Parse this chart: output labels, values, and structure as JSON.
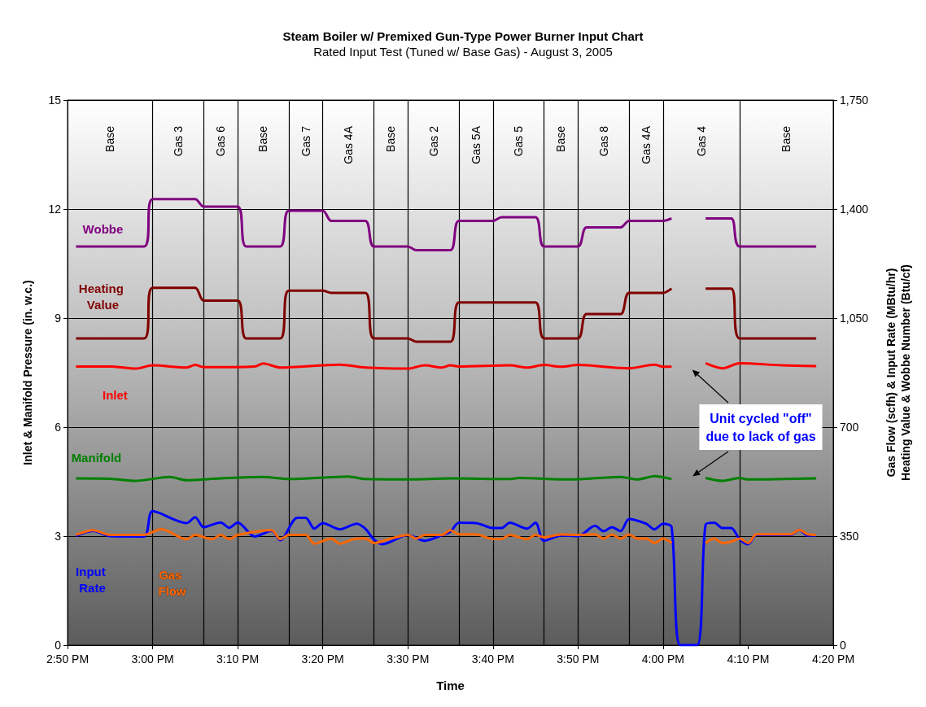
{
  "chart_data": {
    "type": "line",
    "title": "Steam Boiler w/ Premixed Gun-Type Power Burner Input Chart",
    "subtitle": "Rated Input Test (Tuned w/ Base Gas) - August 3, 2005",
    "xlabel": "Time",
    "ylabel": "Inlet & Manifold Pressure (in. w.c.)",
    "y2label": "Gas Flow (scfh) & Input Rate (MBtu/hr)\nHeating Value & Wobbe Number (Btu/cf)",
    "x": [
      "2005-08-03T14:51",
      "2005-08-03T14:59",
      "2005-08-03T15:00",
      "2005-08-03T15:05",
      "2005-08-03T15:06",
      "2005-08-03T15:10",
      "2005-08-03T15:11",
      "2005-08-03T15:15",
      "2005-08-03T15:16",
      "2005-08-03T15:20",
      "2005-08-03T15:21",
      "2005-08-03T15:25",
      "2005-08-03T15:26",
      "2005-08-03T15:30",
      "2005-08-03T15:31",
      "2005-08-03T15:35",
      "2005-08-03T15:36",
      "2005-08-03T15:40",
      "2005-08-03T15:41",
      "2005-08-03T15:45",
      "2005-08-03T15:46",
      "2005-08-03T15:50",
      "2005-08-03T15:51",
      "2005-08-03T15:55",
      "2005-08-03T15:56",
      "2005-08-03T16:00",
      "2005-08-03T16:01",
      "2005-08-03T16:02",
      "2005-08-03T16:05",
      "2005-08-03T16:08",
      "2005-08-03T16:09",
      "2005-08-03T16:18"
    ],
    "series": [
      {
        "name": "Wobbe",
        "color": "#800080",
        "axis": "y2",
        "values": [
          1280,
          1280,
          1432,
          1432,
          1408,
          1408,
          1280,
          1280,
          1395,
          1395,
          1362,
          1362,
          1280,
          1280,
          1268,
          1268,
          1362,
          1362,
          1374,
          1374,
          1280,
          1280,
          1341,
          1341,
          1362,
          1362,
          1370,
          null,
          1370,
          1370,
          1280,
          1280
        ]
      },
      {
        "name": "Heating Value",
        "color": "#800000",
        "axis": "y2",
        "values": [
          985,
          985,
          1147,
          1147,
          1106,
          1106,
          985,
          985,
          1138,
          1138,
          1131,
          1131,
          985,
          985,
          974,
          974,
          1100,
          1100,
          1100,
          1100,
          985,
          985,
          1063,
          1063,
          1131,
          1131,
          1145,
          null,
          1145,
          1145,
          985,
          985
        ]
      },
      {
        "name": "Inlet",
        "color": "#ff0000",
        "x": [
          "2005-08-03T14:51",
          "2005-08-03T14:55",
          "2005-08-03T14:58",
          "2005-08-03T15:00",
          "2005-08-03T15:04",
          "2005-08-03T15:05",
          "2005-08-03T15:06",
          "2005-08-03T15:12",
          "2005-08-03T15:13",
          "2005-08-03T15:15",
          "2005-08-03T15:22",
          "2005-08-03T15:25",
          "2005-08-03T15:30",
          "2005-08-03T15:32",
          "2005-08-03T15:34",
          "2005-08-03T15:35",
          "2005-08-03T15:36",
          "2005-08-03T15:42",
          "2005-08-03T15:44",
          "2005-08-03T15:46",
          "2005-08-03T15:48",
          "2005-08-03T15:50",
          "2005-08-03T15:56",
          "2005-08-03T15:59",
          "2005-08-03T16:00",
          "2005-08-03T16:01",
          "2005-08-03T16:02",
          "2005-08-03T16:05",
          "2005-08-03T16:07",
          "2005-08-03T16:09",
          "2005-08-03T16:14",
          "2005-08-03T16:18"
        ],
        "values": [
          7.67,
          7.67,
          7.61,
          7.7,
          7.64,
          7.71,
          7.65,
          7.67,
          7.75,
          7.64,
          7.72,
          7.64,
          7.61,
          7.7,
          7.64,
          7.7,
          7.67,
          7.7,
          7.64,
          7.71,
          7.66,
          7.71,
          7.62,
          7.72,
          7.66,
          7.67,
          null,
          7.76,
          7.62,
          7.76,
          7.7,
          7.68
        ]
      },
      {
        "name": "Manifold",
        "color": "#008000",
        "x": [
          "2005-08-03T14:51",
          "2005-08-03T14:55",
          "2005-08-03T14:58",
          "2005-08-03T15:02",
          "2005-08-03T15:04",
          "2005-08-03T15:08",
          "2005-08-03T15:13",
          "2005-08-03T15:16",
          "2005-08-03T15:23",
          "2005-08-03T15:25",
          "2005-08-03T15:30",
          "2005-08-03T15:35",
          "2005-08-03T15:42",
          "2005-08-03T15:43",
          "2005-08-03T15:49",
          "2005-08-03T15:55",
          "2005-08-03T15:57",
          "2005-08-03T15:59",
          "2005-08-03T16:01",
          "2005-08-03T16:02",
          "2005-08-03T16:05",
          "2005-08-03T16:07",
          "2005-08-03T16:09",
          "2005-08-03T16:10",
          "2005-08-03T16:18"
        ],
        "values": [
          4.59,
          4.58,
          4.52,
          4.63,
          4.54,
          4.59,
          4.63,
          4.57,
          4.64,
          4.57,
          4.56,
          4.59,
          4.57,
          4.6,
          4.56,
          4.63,
          4.56,
          4.65,
          4.57,
          null,
          4.6,
          4.52,
          4.6,
          4.56,
          4.59
        ]
      },
      {
        "name": "Input Rate",
        "color": "#0000ff",
        "axis": "y2",
        "x": [
          "2005-08-03T14:51",
          "2005-08-03T14:53",
          "2005-08-03T14:55",
          "2005-08-03T14:59",
          "2005-08-03T15:00",
          "2005-08-03T15:04",
          "2005-08-03T15:05",
          "2005-08-03T15:06",
          "2005-08-03T15:08",
          "2005-08-03T15:09",
          "2005-08-03T15:10",
          "2005-08-03T15:12",
          "2005-08-03T15:14",
          "2005-08-03T15:15",
          "2005-08-03T15:17",
          "2005-08-03T15:18",
          "2005-08-03T15:19",
          "2005-08-03T15:20",
          "2005-08-03T15:22",
          "2005-08-03T15:24",
          "2005-08-03T15:25",
          "2005-08-03T15:26",
          "2005-08-03T15:27",
          "2005-08-03T15:30",
          "2005-08-03T15:32",
          "2005-08-03T15:34",
          "2005-08-03T15:35",
          "2005-08-03T15:36",
          "2005-08-03T15:38",
          "2005-08-03T15:40",
          "2005-08-03T15:41",
          "2005-08-03T15:42",
          "2005-08-03T15:44",
          "2005-08-03T15:45",
          "2005-08-03T15:46",
          "2005-08-03T15:48",
          "2005-08-03T15:50",
          "2005-08-03T15:52",
          "2005-08-03T15:53",
          "2005-08-03T15:54",
          "2005-08-03T15:55",
          "2005-08-03T15:56",
          "2005-08-03T15:58",
          "2005-08-03T15:59",
          "2005-08-03T16:00",
          "2005-08-03T16:01",
          "2005-08-03T16:02",
          "2005-08-03T16:04",
          "2005-08-03T16:05",
          "2005-08-03T16:06",
          "2005-08-03T16:07",
          "2005-08-03T16:08",
          "2005-08-03T16:09",
          "2005-08-03T16:10",
          "2005-08-03T16:11",
          "2005-08-03T16:15",
          "2005-08-03T16:16",
          "2005-08-03T16:17",
          "2005-08-03T16:18"
        ],
        "values": [
          350,
          367,
          350,
          349,
          430,
          392,
          411,
          379,
          394,
          377,
          394,
          349,
          367,
          337,
          409,
          409,
          374,
          392,
          372,
          390,
          374,
          340,
          324,
          353,
          335,
          353,
          364,
          393,
          392,
          376,
          376,
          393,
          374,
          393,
          335,
          352,
          350,
          383,
          366,
          379,
          366,
          405,
          390,
          372,
          390,
          379,
          0,
          0,
          387,
          393,
          376,
          376,
          340,
          324,
          354,
          354,
          370,
          352,
          352
        ]
      },
      {
        "name": "Gas Flow",
        "color": "#ff6600",
        "axis": "y2",
        "x": [
          "2005-08-03T14:51",
          "2005-08-03T14:53",
          "2005-08-03T14:55",
          "2005-08-03T14:59",
          "2005-08-03T15:01",
          "2005-08-03T15:04",
          "2005-08-03T15:05",
          "2005-08-03T15:07",
          "2005-08-03T15:08",
          "2005-08-03T15:09",
          "2005-08-03T15:10",
          "2005-08-03T15:14",
          "2005-08-03T15:15",
          "2005-08-03T15:16",
          "2005-08-03T15:18",
          "2005-08-03T15:19",
          "2005-08-03T15:21",
          "2005-08-03T15:22",
          "2005-08-03T15:24",
          "2005-08-03T15:25",
          "2005-08-03T15:26",
          "2005-08-03T15:28",
          "2005-08-03T15:30",
          "2005-08-03T15:31",
          "2005-08-03T15:32",
          "2005-08-03T15:34",
          "2005-08-03T15:35",
          "2005-08-03T15:36",
          "2005-08-03T15:38",
          "2005-08-03T15:40",
          "2005-08-03T15:41",
          "2005-08-03T15:42",
          "2005-08-03T15:44",
          "2005-08-03T15:45",
          "2005-08-03T15:46",
          "2005-08-03T15:48",
          "2005-08-03T15:50",
          "2005-08-03T15:52",
          "2005-08-03T15:53",
          "2005-08-03T15:54",
          "2005-08-03T15:55",
          "2005-08-03T15:56",
          "2005-08-03T15:57",
          "2005-08-03T15:58",
          "2005-08-03T15:59",
          "2005-08-03T16:00",
          "2005-08-03T16:01",
          "2005-08-03T16:03",
          "2005-08-03T16:05",
          "2005-08-03T16:06",
          "2005-08-03T16:07",
          "2005-08-03T16:08",
          "2005-08-03T16:09",
          "2005-08-03T16:10",
          "2005-08-03T16:11",
          "2005-08-03T16:15",
          "2005-08-03T16:16",
          "2005-08-03T16:17",
          "2005-08-03T16:18"
        ],
        "values": [
          354,
          369,
          354,
          354,
          372,
          340,
          354,
          340,
          354,
          341,
          354,
          369,
          340,
          354,
          354,
          326,
          342,
          326,
          342,
          342,
          328,
          342,
          354,
          342,
          354,
          354,
          369,
          356,
          356,
          341,
          341,
          354,
          340,
          354,
          346,
          355,
          354,
          356,
          342,
          355,
          342,
          355,
          342,
          342,
          328,
          342,
          328,
          null,
          328,
          342,
          328,
          332,
          342,
          328,
          356,
          356,
          370,
          356,
          354
        ]
      }
    ],
    "xlim": [
      "2005-08-03T14:50",
      "2005-08-03T16:20"
    ],
    "xticks": [
      {
        "value": "2005-08-03T14:50",
        "label": "2:50 PM"
      },
      {
        "value": "2005-08-03T15:00",
        "label": "3:00 PM"
      },
      {
        "value": "2005-08-03T15:10",
        "label": "3:10 PM"
      },
      {
        "value": "2005-08-03T15:20",
        "label": "3:20 PM"
      },
      {
        "value": "2005-08-03T15:30",
        "label": "3:30 PM"
      },
      {
        "value": "2005-08-03T15:40",
        "label": "3:40 PM"
      },
      {
        "value": "2005-08-03T15:50",
        "label": "3:50 PM"
      },
      {
        "value": "2005-08-03T16:00",
        "label": "4:00 PM"
      },
      {
        "value": "2005-08-03T16:10",
        "label": "4:10 PM"
      },
      {
        "value": "2005-08-03T16:20",
        "label": "4:20 PM"
      }
    ],
    "ylim": [
      0,
      15
    ],
    "yticks": [
      0,
      3,
      6,
      9,
      12,
      15
    ],
    "y2lim": [
      0,
      1750
    ],
    "y2ticks": [
      0,
      350,
      700,
      {
        "value": 1050,
        "label": "1,050"
      },
      {
        "value": 1400,
        "label": "1,400"
      },
      {
        "value": 1750,
        "label": "1,750"
      }
    ],
    "grid": "y",
    "legend": false,
    "ref_lines": [
      {
        "axis": "x",
        "value": "2005-08-03T15:00",
        "label": null
      },
      {
        "axis": "x",
        "value": "2005-08-03T15:06",
        "label": null
      },
      {
        "axis": "x",
        "value": "2005-08-03T15:10",
        "label": null
      },
      {
        "axis": "x",
        "value": "2005-08-03T15:16",
        "label": null
      },
      {
        "axis": "x",
        "value": "2005-08-03T15:20",
        "label": null
      },
      {
        "axis": "x",
        "value": "2005-08-03T15:26",
        "label": null
      },
      {
        "axis": "x",
        "value": "2005-08-03T15:30",
        "label": null
      },
      {
        "axis": "x",
        "value": "2005-08-03T15:36",
        "label": null
      },
      {
        "axis": "x",
        "value": "2005-08-03T15:40",
        "label": null
      },
      {
        "axis": "x",
        "value": "2005-08-03T15:46",
        "label": null
      },
      {
        "axis": "x",
        "value": "2005-08-03T15:50",
        "label": null
      },
      {
        "axis": "x",
        "value": "2005-08-03T15:56",
        "label": null
      },
      {
        "axis": "x",
        "value": "2005-08-03T16:00",
        "label": null
      },
      {
        "axis": "x",
        "value": "2005-08-03T16:09",
        "label": null
      }
    ],
    "annotations": [
      "Base",
      "Gas 3",
      "Gas 6",
      "Base",
      "Gas 7",
      "Gas 4A",
      "Base",
      "Gas 2",
      "Gas 5A",
      "Gas 5",
      "Base",
      "Gas 8",
      "Gas 4A",
      "Gas 4",
      "Base",
      "Unit cycled \"off\"\ndue to lack of gas"
    ]
  }
}
